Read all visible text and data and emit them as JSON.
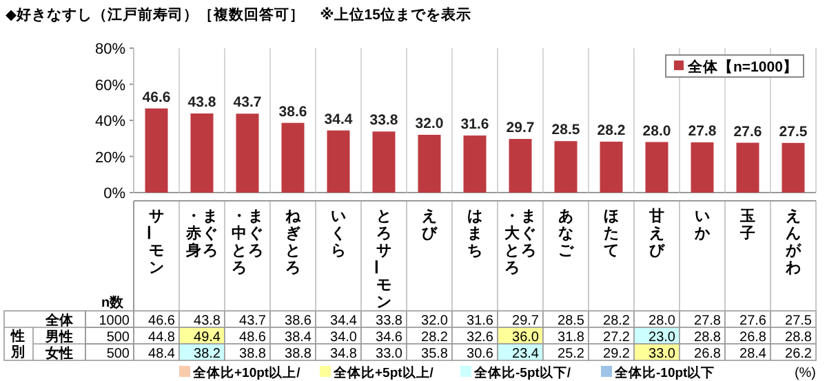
{
  "chart_data": [
    {
      "type": "bar",
      "title": "◆好きなすし（江戸前寿司）［複数回答可］　※上位15位までを表示",
      "categories": [
        "サーモン",
        "まぐろ・赤身",
        "まぐろ・中とろ",
        "ねぎとろ",
        "いくら",
        "とろサーモン",
        "えび",
        "はまち",
        "まぐろ・大とろ",
        "あなご",
        "ほたて",
        "甘えび",
        "いか",
        "玉子",
        "えんがわ"
      ],
      "series": [
        {
          "name": "全体【n=1000】",
          "color": "#be3a41",
          "values": [
            46.6,
            43.8,
            43.7,
            38.6,
            34.4,
            33.8,
            32.0,
            31.6,
            29.7,
            28.5,
            28.2,
            28.0,
            27.8,
            27.6,
            27.5
          ],
          "value_labels": [
            "46.6",
            "43.8",
            "43.7",
            "38.6",
            "34.4",
            "33.8",
            "32.0",
            "31.6",
            "29.7",
            "28.5",
            "28.2",
            "28.0",
            "27.8",
            "27.6",
            "27.5"
          ]
        }
      ],
      "ylim": [
        0,
        80
      ],
      "yticks": [
        {
          "value": 0,
          "label": "0%"
        },
        {
          "value": 20,
          "label": "20%"
        },
        {
          "value": 40,
          "label": "40%"
        },
        {
          "value": 60,
          "label": "60%"
        },
        {
          "value": 80,
          "label": "80%"
        }
      ],
      "legend": "top right"
    },
    {
      "type": "heatmap",
      "categories": [
        null,
        null,
        null,
        null,
        null,
        null,
        null,
        null,
        null,
        null,
        null,
        null,
        null,
        null,
        null
      ],
      "y_categories": [
        "全体",
        "男性",
        "女性"
      ],
      "y2_categories": [
        "1000",
        "500",
        "500"
      ],
      "cells": [
        [
          46.6,
          43.8,
          43.7,
          38.6,
          34.4,
          33.8,
          32.0,
          31.6,
          29.7,
          28.5,
          28.2,
          28.0,
          27.8,
          27.6,
          27.5
        ],
        [
          44.8,
          49.4,
          48.6,
          38.4,
          34.0,
          34.6,
          28.2,
          32.6,
          36.0,
          31.8,
          27.2,
          23.0,
          28.8,
          26.8,
          28.8
        ],
        [
          48.4,
          38.2,
          38.8,
          38.8,
          34.8,
          33.0,
          35.8,
          30.6,
          23.4,
          25.2,
          29.2,
          33.0,
          26.8,
          28.4,
          26.2
        ]
      ],
      "cell_labels": [
        [
          "46.6",
          "43.8",
          "43.7",
          "38.6",
          "34.4",
          "33.8",
          "32.0",
          "31.6",
          "29.7",
          "28.5",
          "28.2",
          "28.0",
          "27.8",
          "27.6",
          "27.5"
        ],
        [
          "44.8",
          "49.4",
          "48.6",
          "38.4",
          "34.0",
          "34.6",
          "28.2",
          "32.6",
          "36.0",
          "31.8",
          "27.2",
          "23.0",
          "28.8",
          "26.8",
          "28.8"
        ],
        [
          "48.4",
          "38.2",
          "38.8",
          "38.8",
          "34.8",
          "33.0",
          "35.8",
          "30.6",
          "23.4",
          "25.2",
          "29.2",
          "33.0",
          "26.8",
          "28.4",
          "26.2"
        ]
      ],
      "annotations": [
        "n数",
        "性別",
        "全体比+10pt以上/",
        "全体比+5pt以上/",
        "全体比-5pt以下/",
        "全体比-10pt以下",
        "(%)"
      ]
    }
  ]
}
